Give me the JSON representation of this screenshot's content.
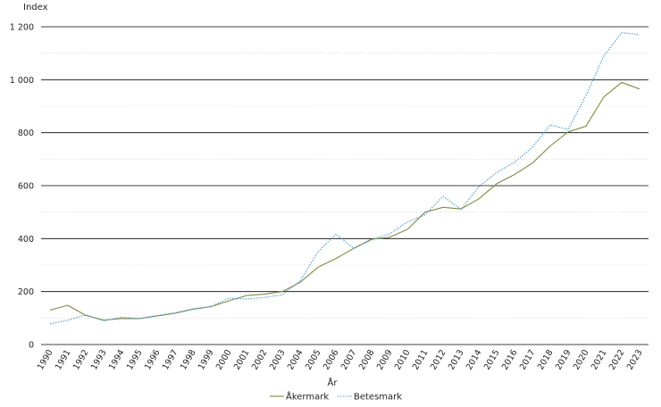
{
  "chart_data": {
    "type": "line",
    "ylabel": "Index",
    "xlabel": "År",
    "ylim": [
      0,
      1200
    ],
    "yticks": [
      0,
      200,
      400,
      600,
      800,
      1000,
      1200
    ],
    "ytick_labels": [
      "0",
      "200",
      "400",
      "600",
      "800",
      "1 000",
      "1 200"
    ],
    "grid": "major horizontal solid, minor horizontal dotted",
    "legend_position": "bottom-center",
    "x": [
      "1990",
      "1991",
      "1992",
      "1993",
      "1994",
      "1995",
      "1996",
      "1997",
      "1998",
      "1999",
      "2000",
      "2001",
      "2002",
      "2003",
      "2004",
      "2005",
      "2006",
      "2007",
      "2008",
      "2009",
      "2010",
      "2011",
      "2012",
      "2013",
      "2014",
      "2015",
      "2016",
      "2017",
      "2018",
      "2019",
      "2020",
      "2021",
      "2022",
      "2023"
    ],
    "series": [
      {
        "name": "Åkermark",
        "color": "#7f8c3a",
        "style": "solid",
        "values": [
          130,
          148,
          110,
          92,
          98,
          98,
          108,
          118,
          133,
          143,
          165,
          185,
          190,
          200,
          235,
          292,
          325,
          363,
          398,
          405,
          435,
          500,
          518,
          512,
          550,
          607,
          642,
          685,
          750,
          803,
          825,
          935,
          990,
          965
        ]
      },
      {
        "name": "Betesmark",
        "color": "#3d9dd6",
        "style": "dotted",
        "values": [
          78,
          92,
          112,
          90,
          103,
          98,
          110,
          120,
          135,
          143,
          175,
          172,
          178,
          188,
          240,
          350,
          417,
          363,
          395,
          418,
          462,
          490,
          560,
          510,
          596,
          650,
          688,
          745,
          830,
          812,
          940,
          1090,
          1178,
          1170
        ]
      }
    ]
  }
}
